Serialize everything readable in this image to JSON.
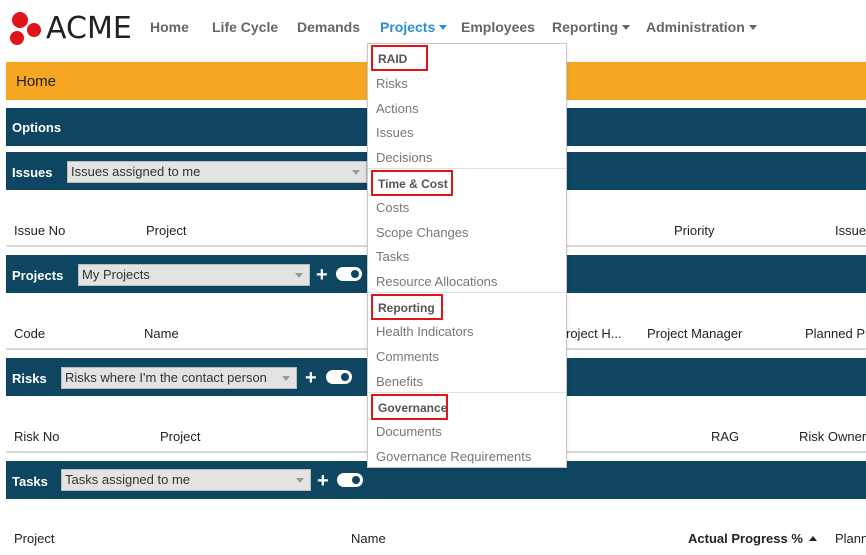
{
  "brand": {
    "name": "ACME",
    "logo_color": "#e0141b"
  },
  "nav": {
    "home": "Home",
    "life_cycle": "Life Cycle",
    "demands": "Demands",
    "projects": "Projects",
    "employees": "Employees",
    "reporting": "Reporting",
    "administration": "Administration"
  },
  "page": {
    "title": "Home",
    "options_label": "Options"
  },
  "issues": {
    "title": "Issues",
    "filter": "Issues assigned to me",
    "columns": [
      "Issue No",
      "Project",
      "Priority",
      "Issue"
    ]
  },
  "projects": {
    "title": "Projects",
    "filter": "My Projects",
    "add": "+",
    "columns": [
      "Code",
      "Name",
      "roject H...",
      "Project Manager",
      "Planned Pr"
    ]
  },
  "risks": {
    "title": "Risks",
    "filter": "Risks where I'm the contact person",
    "add": "+",
    "columns": [
      "Risk No",
      "Project",
      "RAG",
      "Risk Owner"
    ]
  },
  "tasks": {
    "title": "Tasks",
    "filter": "Tasks assigned to me",
    "add": "+",
    "columns": [
      "Project",
      "Name",
      "Actual Progress %",
      "Plann"
    ]
  },
  "projects_menu": {
    "raid": {
      "header": "RAID",
      "items": [
        "Risks",
        "Actions",
        "Issues",
        "Decisions"
      ]
    },
    "time_cost": {
      "header": "Time & Cost",
      "items": [
        "Costs",
        "Scope Changes",
        "Tasks",
        "Resource Allocations"
      ]
    },
    "reporting": {
      "header": "Reporting",
      "items": [
        "Health Indicators",
        "Comments",
        "Benefits"
      ]
    },
    "governance": {
      "header": "Governance",
      "items": [
        "Documents",
        "Governance Requirements"
      ]
    }
  },
  "colors": {
    "accent_orange": "#f5a623",
    "panel_dark": "#0e4560",
    "nav_active": "#2f8fce",
    "highlight": "#e0141b"
  }
}
